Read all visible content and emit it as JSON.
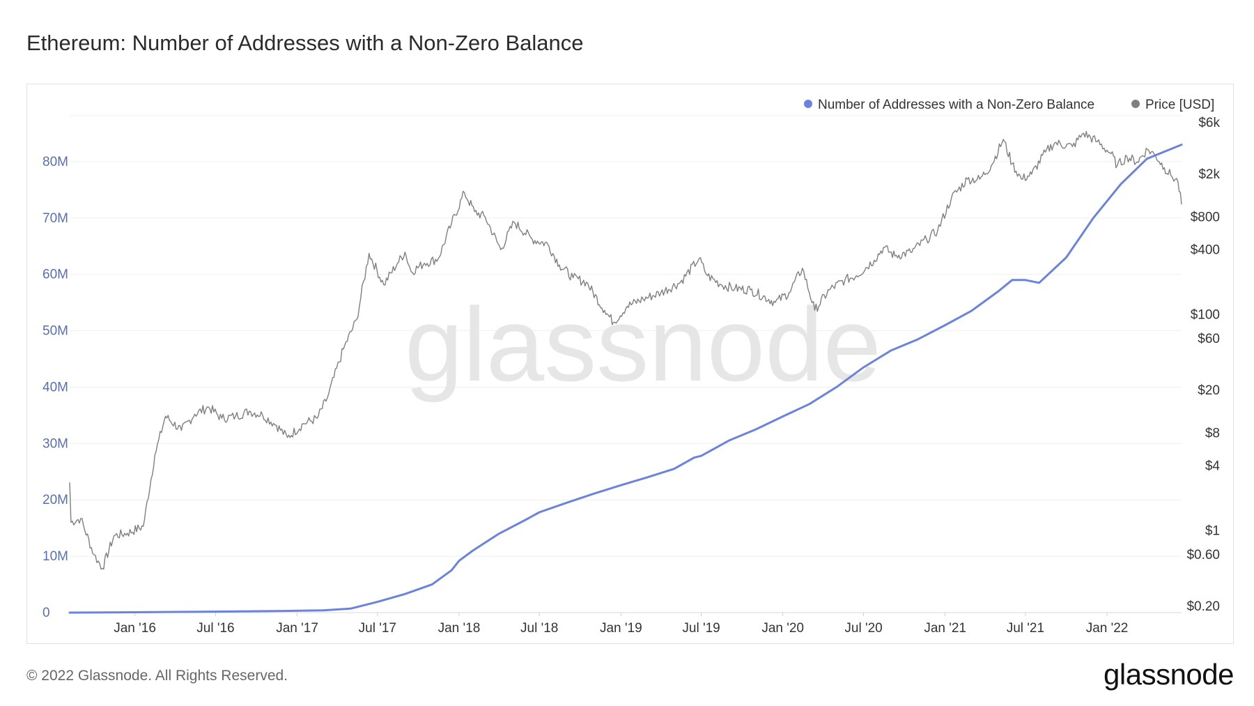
{
  "page": {
    "title": "Ethereum: Number of Addresses with a Non-Zero Balance",
    "copyright": "© 2022 Glassnode. All Rights Reserved.",
    "logo": "glassnode",
    "watermark": "glassnode"
  },
  "colors": {
    "addresses": "#6a82e0",
    "price": "#7f7f7f",
    "left_axis_text": "#5a6eb3",
    "grid": "#efefef"
  },
  "chart_data": {
    "type": "line",
    "legend_position": "top-right",
    "grid": true,
    "x_ticks": [
      "Jan '16",
      "Jul '16",
      "Jan '17",
      "Jul '17",
      "Jan '18",
      "Jul '18",
      "Jan '19",
      "Jul '19",
      "Jan '20",
      "Jul '20",
      "Jan '21",
      "Jul '21",
      "Jan '22"
    ],
    "x_range": [
      "2015-08-07",
      "2022-06-18"
    ],
    "y_left": {
      "ticks": [
        "0",
        "10M",
        "20M",
        "30M",
        "40M",
        "50M",
        "60M",
        "70M",
        "80M"
      ],
      "range": [
        0,
        90000000
      ]
    },
    "y_right": {
      "scale": "log",
      "ticks": [
        "$6k",
        "$2k",
        "$800",
        "$400",
        "$100",
        "$60",
        "$20",
        "$8",
        "$4",
        "$1",
        "$0.60",
        "$0.20"
      ],
      "tick_values": [
        6000,
        2000,
        800,
        400,
        100,
        60,
        20,
        8,
        4,
        1,
        0.6,
        0.2
      ]
    },
    "series": [
      {
        "name": "Number of Addresses with a Non-Zero Balance",
        "axis": "left",
        "x": [
          "2015-08-07",
          "2015-12-01",
          "2016-06-01",
          "2016-12-01",
          "2017-03-01",
          "2017-05-01",
          "2017-07-01",
          "2017-09-01",
          "2017-11-01",
          "2017-12-15",
          "2018-01-01",
          "2018-02-01",
          "2018-04-01",
          "2018-06-01",
          "2018-07-01",
          "2018-09-01",
          "2018-11-01",
          "2019-01-01",
          "2019-03-01",
          "2019-05-01",
          "2019-06-15",
          "2019-07-01",
          "2019-09-01",
          "2019-11-01",
          "2020-01-01",
          "2020-03-01",
          "2020-05-01",
          "2020-07-01",
          "2020-09-01",
          "2020-11-01",
          "2021-01-01",
          "2021-03-01",
          "2021-05-01",
          "2021-06-01",
          "2021-07-01",
          "2021-08-01",
          "2021-10-01",
          "2021-12-01",
          "2022-02-01",
          "2022-04-01",
          "2022-06-18"
        ],
        "values": [
          0,
          50000,
          150000,
          300000,
          400000,
          700000,
          1900000,
          3300000,
          5000000,
          7500000,
          9200000,
          11000000,
          14000000,
          16500000,
          17800000,
          19500000,
          21100000,
          22600000,
          24000000,
          25500000,
          27500000,
          27800000,
          30500000,
          32500000,
          34800000,
          37000000,
          40000000,
          43500000,
          46500000,
          48500000,
          51000000,
          53500000,
          57000000,
          59000000,
          59000000,
          58500000,
          63000000,
          70000000,
          76000000,
          80500000,
          83000000
        ]
      },
      {
        "name": "Price [USD]",
        "axis": "right",
        "x": [
          "2015-08-07",
          "2015-08-10",
          "2015-09-01",
          "2015-10-01",
          "2015-10-20",
          "2015-11-15",
          "2015-12-15",
          "2016-01-20",
          "2016-02-15",
          "2016-03-10",
          "2016-04-15",
          "2016-05-15",
          "2016-06-15",
          "2016-07-15",
          "2016-08-15",
          "2016-09-15",
          "2016-10-15",
          "2016-11-15",
          "2016-12-10",
          "2017-01-15",
          "2017-02-15",
          "2017-03-10",
          "2017-04-15",
          "2017-05-15",
          "2017-06-12",
          "2017-07-15",
          "2017-08-15",
          "2017-09-01",
          "2017-09-15",
          "2017-10-15",
          "2017-11-15",
          "2017-12-15",
          "2018-01-13",
          "2018-02-05",
          "2018-03-01",
          "2018-04-05",
          "2018-05-05",
          "2018-06-15",
          "2018-07-20",
          "2018-08-15",
          "2018-09-15",
          "2018-10-15",
          "2018-11-25",
          "2018-12-15",
          "2019-01-15",
          "2019-02-20",
          "2019-04-01",
          "2019-05-15",
          "2019-06-26",
          "2019-07-15",
          "2019-08-15",
          "2019-09-15",
          "2019-10-20",
          "2019-12-15",
          "2020-01-15",
          "2020-02-14",
          "2020-03-13",
          "2020-04-15",
          "2020-05-20",
          "2020-06-15",
          "2020-07-25",
          "2020-08-15",
          "2020-09-10",
          "2020-10-15",
          "2020-11-20",
          "2020-12-15",
          "2021-01-15",
          "2021-02-20",
          "2021-03-20",
          "2021-04-15",
          "2021-05-12",
          "2021-06-01",
          "2021-06-22",
          "2021-07-15",
          "2021-08-15",
          "2021-09-05",
          "2021-10-15",
          "2021-11-09",
          "2021-12-10",
          "2022-01-10",
          "2022-01-24",
          "2022-02-15",
          "2022-03-10",
          "2022-04-02",
          "2022-04-20",
          "2022-05-10",
          "2022-05-25",
          "2022-06-10",
          "2022-06-18"
        ],
        "values": [
          2.8,
          1.2,
          1.3,
          0.6,
          0.45,
          0.9,
          0.95,
          1.1,
          5.0,
          11.5,
          8.5,
          12.0,
          14.0,
          11.0,
          11.5,
          12.8,
          11.8,
          9.5,
          7.3,
          9.8,
          11.0,
          17.0,
          48.0,
          90.0,
          370.0,
          190.0,
          300.0,
          380.0,
          250.0,
          300.0,
          330.0,
          700.0,
          1350.0,
          900.0,
          800.0,
          400.0,
          720.0,
          500.0,
          450.0,
          290.0,
          220.0,
          200.0,
          110.0,
          85.0,
          120.0,
          140.0,
          160.0,
          200.0,
          330.0,
          230.0,
          190.0,
          175.0,
          170.0,
          130.0,
          160.0,
          270.0,
          110.0,
          170.0,
          210.0,
          230.0,
          320.0,
          420.0,
          350.0,
          380.0,
          500.0,
          600.0,
          1200.0,
          1800.0,
          1800.0,
          2400.0,
          4200.0,
          2500.0,
          1800.0,
          2000.0,
          3200.0,
          3900.0,
          3600.0,
          4800.0,
          4000.0,
          3100.0,
          2400.0,
          2900.0,
          2600.0,
          3400.0,
          3000.0,
          2300.0,
          1950.0,
          1700.0,
          1050.0
        ]
      }
    ]
  }
}
